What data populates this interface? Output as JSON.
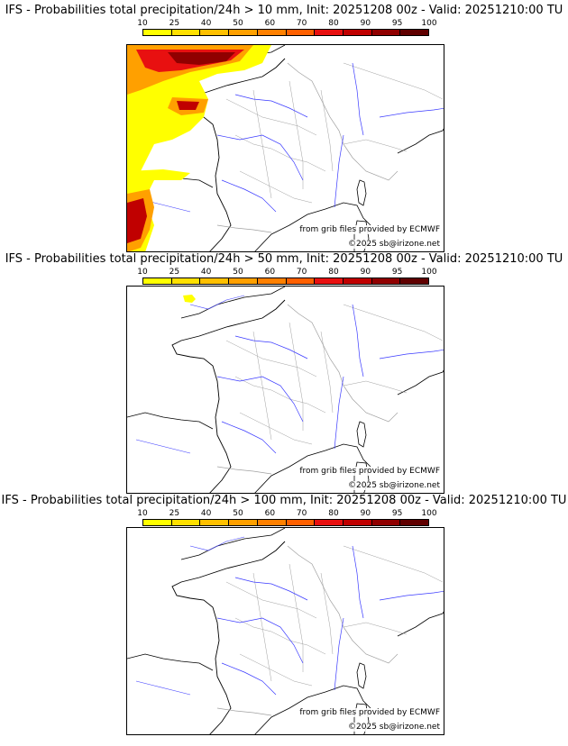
{
  "panels": [
    {
      "title": "IFS - Probabilities total precipitation/24h > 10 mm, Init: 20251208 00z - Valid: 20251210:00 TU",
      "threshold": "10 mm",
      "credit_source": "from grib files provided by ECMWF",
      "credit_copyright": "©2025 sb@irizone.net",
      "precip_zones": "north-west Brittany / Channel and west-Atlantic coast, north-west Iberia"
    },
    {
      "title": "IFS - Probabilities total precipitation/24h > 50 mm, Init: 20251208 00z - Valid: 20251210:00 TU",
      "threshold": "50 mm",
      "credit_source": "from grib files provided by ECMWF",
      "credit_copyright": "©2025 sb@irizone.net",
      "precip_zones": "small spot over south-west England"
    },
    {
      "title": "IFS - Probabilities total precipitation/24h > 100 mm, Init: 20251208 00z - Valid: 20251210:00 TU",
      "threshold": "100 mm",
      "credit_source": "from grib files provided by ECMWF",
      "credit_copyright": "©2025 sb@irizone.net",
      "precip_zones": "none"
    }
  ],
  "colorbar": {
    "labels": [
      "10",
      "25",
      "40",
      "50",
      "60",
      "70",
      "80",
      "90",
      "95",
      "100"
    ],
    "colors": [
      "#ffff00",
      "#ffe000",
      "#ffc000",
      "#ffa000",
      "#ff8000",
      "#ff6000",
      "#e81010",
      "#c00000",
      "#900000",
      "#600000"
    ]
  },
  "legend_colors": {
    "coastline": "#000000",
    "rivers": "#3a3aff",
    "borders": "#a0a0a0"
  }
}
